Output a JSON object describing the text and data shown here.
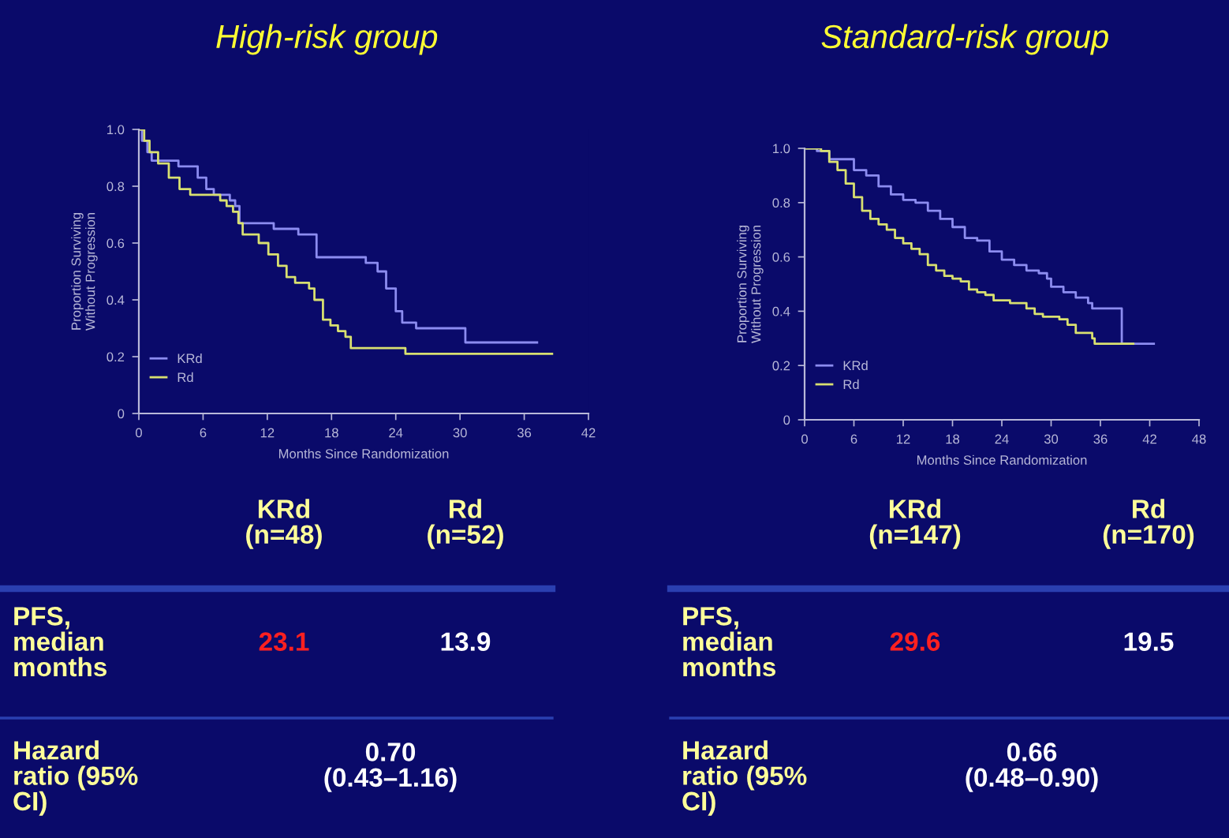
{
  "chart_data": [
    {
      "type": "step",
      "title": "High-risk group",
      "xlabel": "Months Since Randomization",
      "ylabel": "Proportion Surviving\nWithout Progression",
      "xlim": [
        0,
        42
      ],
      "xticks": [
        0,
        6,
        12,
        18,
        24,
        30,
        36,
        42
      ],
      "ylim": [
        0,
        1.0
      ],
      "yticks": [
        0,
        0.2,
        0.4,
        0.6,
        0.8,
        {
          "value": 1,
          "label": "1.0"
        }
      ],
      "legend": "bottom left",
      "grid": false,
      "series": [
        {
          "name": "KRd",
          "color": "#8c8cf0",
          "x": [
            0,
            0.3,
            0.8,
            1.2,
            3.7,
            5.5,
            6.3,
            7,
            8.5,
            9,
            9.4,
            12.6,
            14.9,
            16.6,
            21.2,
            22.3,
            23.1,
            24,
            24.6,
            25.9,
            30.5,
            37.2
          ],
          "values": [
            1.0,
            0.96,
            0.92,
            0.89,
            0.87,
            0.83,
            0.79,
            0.77,
            0.75,
            0.73,
            0.67,
            0.65,
            0.63,
            0.55,
            0.53,
            0.5,
            0.44,
            0.36,
            0.32,
            0.3,
            0.25,
            0.25
          ]
        },
        {
          "name": "Rd",
          "color": "#d8e070",
          "x": [
            0,
            0.5,
            1.0,
            1.8,
            2.8,
            3.8,
            4.8,
            7.6,
            8.2,
            8.8,
            9.3,
            9.7,
            11.2,
            12.1,
            13.0,
            13.8,
            14.6,
            15.9,
            16.4,
            17.2,
            17.9,
            18.6,
            19.3,
            19.8,
            24.9,
            38.6
          ],
          "values": [
            1.0,
            0.96,
            0.92,
            0.88,
            0.83,
            0.79,
            0.77,
            0.75,
            0.73,
            0.71,
            0.67,
            0.63,
            0.6,
            0.56,
            0.52,
            0.48,
            0.46,
            0.44,
            0.4,
            0.33,
            0.31,
            0.29,
            0.27,
            0.23,
            0.21,
            0.21
          ]
        }
      ],
      "annotations": [
        "KRd\n(n=48)",
        "Rd\n(n=52)",
        "PFS,\nmedian\nmonths",
        "23.1",
        "13.9",
        "Hazard\nratio (95%\nCI)",
        "0.70\n(0.43–1.16)"
      ]
    },
    {
      "type": "step",
      "title": "Standard-risk group",
      "xlabel": "Months Since Randomization",
      "ylabel": "Proportion Surviving\nWithout Progression",
      "xlim": [
        0,
        48
      ],
      "xticks": [
        0,
        6,
        12,
        18,
        24,
        30,
        36,
        42,
        48
      ],
      "ylim": [
        0,
        1.0
      ],
      "yticks": [
        0,
        0.2,
        0.4,
        0.6,
        0.8,
        {
          "value": 1,
          "label": "1.0"
        }
      ],
      "legend": "bottom left",
      "grid": false,
      "series": [
        {
          "name": "KRd",
          "color": "#8c8cf0",
          "x": [
            0,
            1.5,
            3,
            6,
            7.5,
            9,
            10.5,
            12,
            13.5,
            15,
            16.5,
            18,
            19.5,
            21,
            22.5,
            24,
            25.5,
            27,
            28.5,
            29.5,
            30,
            31.5,
            33,
            34.5,
            35,
            38.6,
            42.5
          ],
          "values": [
            1.0,
            0.99,
            0.96,
            0.92,
            0.9,
            0.86,
            0.83,
            0.81,
            0.8,
            0.77,
            0.74,
            0.71,
            0.67,
            0.66,
            0.62,
            0.59,
            0.57,
            0.55,
            0.54,
            0.52,
            0.49,
            0.47,
            0.45,
            0.43,
            0.41,
            0.28,
            0.28
          ]
        },
        {
          "name": "Rd",
          "color": "#d8e070",
          "x": [
            0,
            2,
            3,
            4,
            5,
            6,
            7,
            8,
            9,
            10,
            11,
            12,
            13,
            14,
            15,
            16,
            17,
            18,
            19,
            20,
            21,
            22,
            23,
            25,
            27,
            28,
            29,
            31,
            32,
            33,
            35,
            35.3,
            40
          ],
          "values": [
            1.0,
            0.99,
            0.95,
            0.92,
            0.87,
            0.82,
            0.77,
            0.74,
            0.72,
            0.7,
            0.67,
            0.65,
            0.63,
            0.61,
            0.57,
            0.55,
            0.53,
            0.52,
            0.51,
            0.48,
            0.47,
            0.46,
            0.44,
            0.43,
            0.41,
            0.39,
            0.38,
            0.37,
            0.35,
            0.32,
            0.3,
            0.28,
            0.28
          ]
        }
      ],
      "annotations": [
        "KRd\n(n=147)",
        "Rd\n(n=170)",
        "PFS,\nmedian\nmonths",
        "29.6",
        "19.5",
        "Hazard\nratio (95%\nCI)",
        "0.66\n(0.48–0.90)"
      ]
    }
  ]
}
